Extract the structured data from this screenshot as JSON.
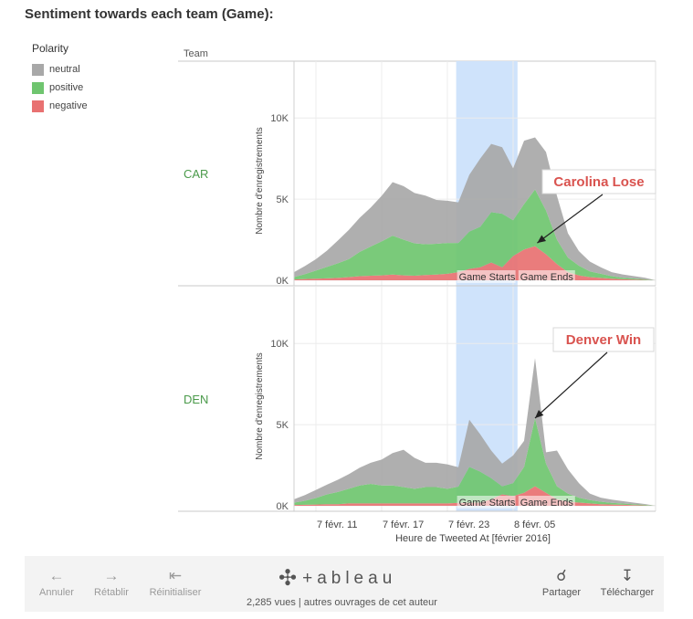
{
  "title": "Sentiment towards each team (Game):",
  "legend": {
    "title": "Polarity",
    "items": [
      {
        "label": "neutral",
        "color": "#a8a8a8"
      },
      {
        "label": "positive",
        "color": "#6fc56f"
      },
      {
        "label": "negative",
        "color": "#e87171"
      }
    ]
  },
  "chart_data": {
    "type": "area",
    "stacked": true,
    "facet_header": "Team",
    "xlabel": "Heure de Tweeted At [février 2016]",
    "ylabel": "Nombre d'enregistrements",
    "x_ticks": [
      "7 févr. 11",
      "7 févr. 17",
      "7 févr. 23",
      "8 févr. 05"
    ],
    "xlim": [
      0,
      33
    ],
    "ylim": [
      0,
      13500
    ],
    "y_ticks": [
      0,
      5000,
      10000
    ],
    "y_tick_labels": [
      "0K",
      "5K",
      "10K"
    ],
    "x_tick_positions": [
      2,
      8,
      14,
      20
    ],
    "grid": true,
    "legend_position": "top-left",
    "highlight": {
      "from": 14.8,
      "to": 20.4,
      "color": "#cfe3fb"
    },
    "annotations": [
      "Game Starts",
      "Game Ends"
    ],
    "colors": {
      "neutral": "#a8a8a8",
      "positive": "#6fc56f",
      "negative": "#e87171"
    },
    "panels": [
      {
        "team": "CAR",
        "callout": "Carolina Lose",
        "callout_point": [
          22.2,
          2300
        ],
        "x": [
          0,
          1,
          2,
          3,
          4,
          5,
          6,
          7,
          8,
          9,
          10,
          11,
          12,
          13,
          14,
          15,
          16,
          17,
          18,
          19,
          20,
          21,
          22,
          23,
          24,
          25,
          26,
          27,
          28,
          29,
          30,
          31,
          32,
          33
        ],
        "series": [
          {
            "name": "negative",
            "values": [
              50,
              80,
              100,
              120,
              150,
              200,
              250,
              280,
              300,
              350,
              300,
              280,
              320,
              350,
              400,
              500,
              700,
              800,
              1100,
              800,
              1500,
              1900,
              2100,
              1600,
              1000,
              500,
              300,
              200,
              150,
              100,
              60,
              40,
              20,
              0
            ]
          },
          {
            "name": "positive",
            "values": [
              150,
              300,
              500,
              700,
              900,
              1100,
              1500,
              1800,
              2100,
              2400,
              2200,
              2000,
              1900,
              1900,
              1900,
              1800,
              2300,
              2500,
              3100,
              3300,
              2200,
              2800,
              3500,
              2700,
              1500,
              900,
              600,
              350,
              250,
              150,
              100,
              70,
              40,
              0
            ]
          },
          {
            "name": "neutral",
            "values": [
              300,
              500,
              700,
              1000,
              1400,
              1800,
              2100,
              2400,
              2800,
              3300,
              3300,
              3100,
              3000,
              2700,
              2600,
              2500,
              3500,
              4200,
              4200,
              4100,
              3200,
              3900,
              3200,
              3600,
              2700,
              1500,
              900,
              600,
              400,
              250,
              200,
              150,
              100,
              0
            ]
          }
        ]
      },
      {
        "team": "DEN",
        "callout": "Denver Win",
        "callout_point": [
          22.0,
          5400
        ],
        "x": [
          0,
          1,
          2,
          3,
          4,
          5,
          6,
          7,
          8,
          9,
          10,
          11,
          12,
          13,
          14,
          15,
          16,
          17,
          18,
          19,
          20,
          21,
          22,
          23,
          24,
          25,
          26,
          27,
          28,
          29,
          30,
          31,
          32,
          33
        ],
        "series": [
          {
            "name": "negative",
            "values": [
              50,
              60,
              80,
              100,
              100,
              150,
              150,
              150,
              150,
              150,
              150,
              150,
              150,
              150,
              150,
              180,
              200,
              200,
              400,
              700,
              600,
              800,
              1200,
              800,
              400,
              250,
              200,
              150,
              100,
              80,
              60,
              40,
              20,
              0
            ]
          },
          {
            "name": "positive",
            "values": [
              150,
              250,
              400,
              600,
              750,
              900,
              1100,
              1200,
              1100,
              1100,
              1000,
              900,
              1000,
              1000,
              900,
              1000,
              2200,
              1900,
              1300,
              500,
              800,
              1600,
              4200,
              1800,
              800,
              500,
              300,
              200,
              150,
              100,
              80,
              60,
              40,
              0
            ]
          },
          {
            "name": "neutral",
            "values": [
              200,
              350,
              500,
              600,
              750,
              900,
              1100,
              1300,
              1600,
              2000,
              2300,
              1900,
              1500,
              1500,
              1500,
              1200,
              2900,
              2300,
              1700,
              1400,
              1700,
              1600,
              3700,
              700,
              2200,
              1500,
              900,
              400,
              250,
              200,
              150,
              100,
              50,
              0
            ]
          }
        ]
      }
    ]
  },
  "footer": {
    "undo_label": "Annuler",
    "redo_label": "Rétablir",
    "reset_label": "Réinitialiser",
    "brand_label": "+ableau",
    "views_text": "2,285 vues | autres ouvrages de cet auteur",
    "share_label": "Partager",
    "download_label": "Télécharger"
  }
}
